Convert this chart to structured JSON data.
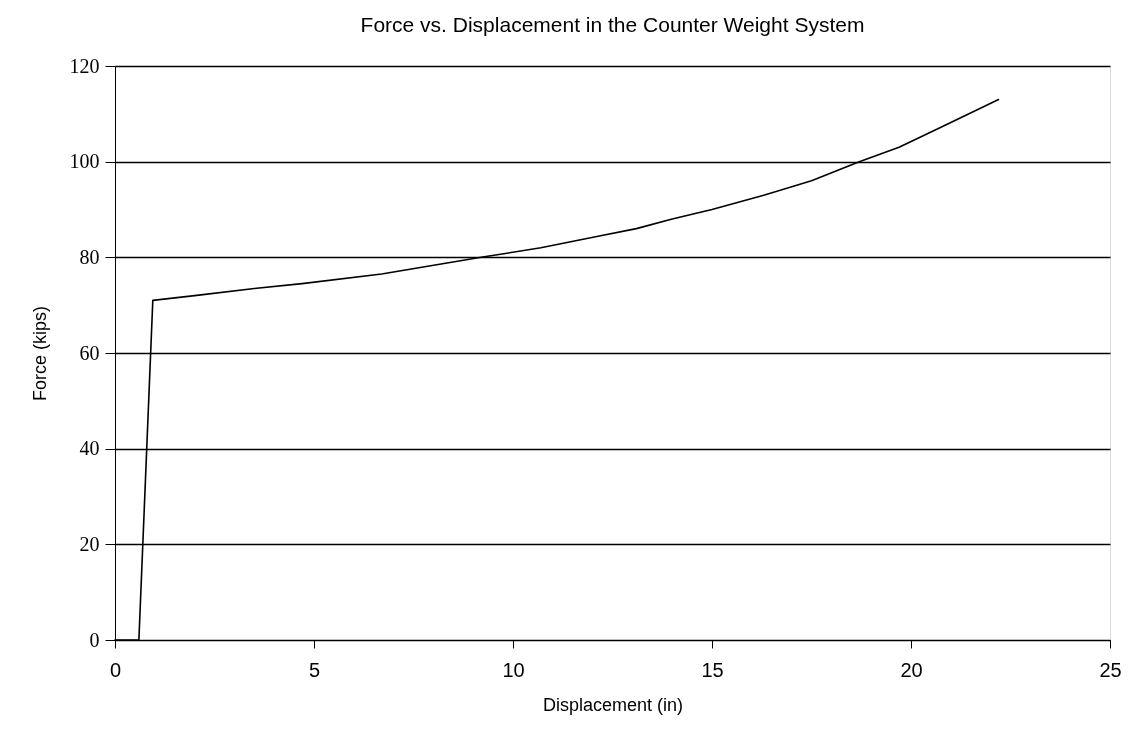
{
  "chart_data": {
    "type": "line",
    "title": "Force vs. Displacement in the Counter Weight System",
    "xlabel": "Displacement (in)",
    "ylabel": "Force (kips)",
    "x": [
      0,
      0.6,
      0.95,
      2,
      3.5,
      4.7,
      6.7,
      9.2,
      10.7,
      12.2,
      13.1,
      14.0,
      15.0,
      16.3,
      17.5,
      18.7,
      19.7,
      20.7,
      22.2
    ],
    "series": [
      {
        "color": "#000000",
        "values": [
          0,
          0,
          71,
          72,
          73.5,
          74.5,
          76.5,
          80,
          82,
          84.5,
          86,
          88,
          90,
          93,
          96,
          100,
          103,
          107,
          113
        ]
      }
    ],
    "xlim": [
      0,
      25
    ],
    "xticks": [
      0,
      5,
      10,
      15,
      20,
      25
    ],
    "ylim": [
      0,
      120
    ],
    "yticks": [
      0,
      20,
      40,
      60,
      80,
      100,
      120
    ],
    "grid": "y",
    "legend": false,
    "marker": "none",
    "line_style": "solid"
  }
}
